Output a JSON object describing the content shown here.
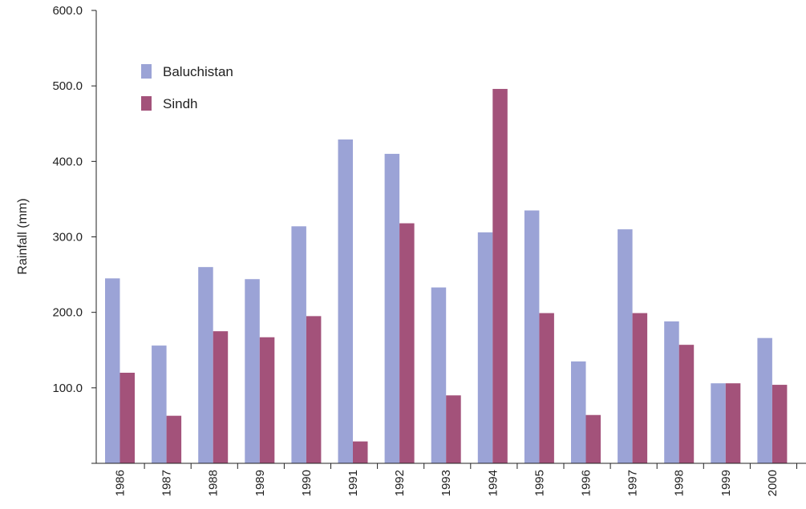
{
  "chart_data": {
    "type": "bar",
    "title": "",
    "xlabel": "",
    "ylabel": "Rainfall (mm)",
    "ylim": [
      0,
      600
    ],
    "yticks": [
      "100.0",
      "200.0",
      "300.0",
      "400.0",
      "500.0",
      "600.0"
    ],
    "ytick_values": [
      100,
      200,
      300,
      400,
      500,
      600
    ],
    "grid": false,
    "legend_position": "top-left",
    "categories": [
      "1986",
      "1987",
      "1988",
      "1989",
      "1990",
      "1991",
      "1992",
      "1993",
      "1994",
      "1995",
      "1996",
      "1997",
      "1998",
      "1999",
      "2000"
    ],
    "series": [
      {
        "name": "Baluchistan",
        "color": "#9ba3d6",
        "values": [
          245,
          156,
          260,
          244,
          314,
          429,
          410,
          233,
          306,
          335,
          135,
          310,
          188,
          106,
          166
        ]
      },
      {
        "name": "Sindh",
        "color": "#a3527a",
        "values": [
          120,
          63,
          175,
          167,
          195,
          29,
          318,
          90,
          496,
          199,
          64,
          199,
          157,
          106,
          104
        ]
      }
    ]
  }
}
